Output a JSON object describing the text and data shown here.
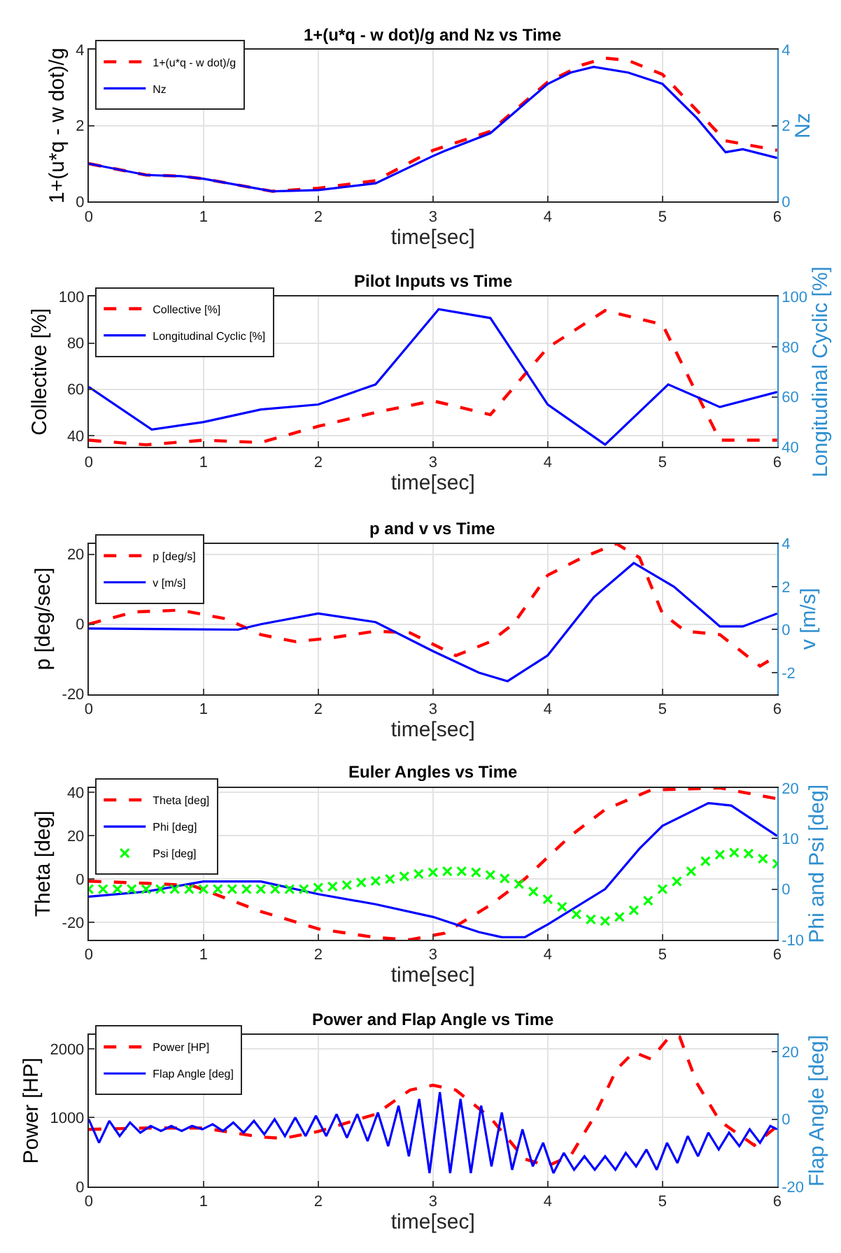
{
  "chart_data": [
    {
      "type": "line",
      "title": "1+(u*q - w dot)/g and Nz vs Time",
      "xlabel": "time[sec]",
      "ylabel": "1+(u*q - w dot)/g",
      "y2label": "Nz",
      "xlim": [
        0,
        6
      ],
      "xticks": [
        0,
        1,
        2,
        3,
        4,
        5,
        6
      ],
      "ylim": [
        0,
        4
      ],
      "yticks": [
        0,
        2,
        4
      ],
      "y2lim": [
        0,
        4
      ],
      "y2ticks": [
        0,
        2,
        4
      ],
      "grid": true,
      "legend": "top left",
      "series": [
        {
          "name": "1+(u*q - w dot)/g",
          "color": "#ff0000",
          "line_style": "dashed",
          "x": [
            0,
            0.5,
            0.8,
            1,
            1.6,
            2,
            2.5,
            3,
            3.5,
            4,
            4.3,
            4.5,
            4.7,
            5,
            5.3,
            5.55,
            6
          ],
          "values": [
            1.0,
            0.7,
            0.67,
            0.6,
            0.27,
            0.35,
            0.55,
            1.35,
            1.85,
            3.15,
            3.6,
            3.78,
            3.72,
            3.35,
            2.4,
            1.6,
            1.35
          ]
        },
        {
          "name": "Nz",
          "color": "#0000ff",
          "line_style": "solid",
          "axis": "y2",
          "x": [
            0,
            0.5,
            0.8,
            1,
            1.6,
            2,
            2.5,
            3,
            3.1,
            3.5,
            4,
            4.2,
            4.4,
            4.7,
            5,
            5.3,
            5.55,
            5.7,
            6
          ],
          "values": [
            1.0,
            0.7,
            0.67,
            0.6,
            0.27,
            0.3,
            0.48,
            1.2,
            1.33,
            1.8,
            3.1,
            3.4,
            3.55,
            3.4,
            3.1,
            2.2,
            1.3,
            1.38,
            1.15
          ]
        }
      ]
    },
    {
      "type": "line",
      "title": "Pilot Inputs vs Time",
      "xlabel": "time[sec]",
      "ylabel": "Collective [%]",
      "y2label": "Longitudinal Cyclic [%]",
      "xlim": [
        0,
        6
      ],
      "xticks": [
        0,
        1,
        2,
        3,
        4,
        5,
        6
      ],
      "ylim": [
        35,
        100
      ],
      "yticks": [
        40,
        60,
        80,
        100
      ],
      "y2lim": [
        40,
        100
      ],
      "y2ticks": [
        40,
        60,
        80,
        100
      ],
      "grid": true,
      "legend": "top left",
      "series": [
        {
          "name": "Collective [%]",
          "color": "#ff0000",
          "line_style": "dashed",
          "x": [
            0,
            0.5,
            1,
            1.5,
            2,
            2.5,
            3,
            3.5,
            4,
            4.5,
            5,
            5.5,
            6
          ],
          "values": [
            38,
            36,
            38,
            37,
            44,
            50,
            55,
            49,
            78,
            94,
            88,
            38,
            38
          ]
        },
        {
          "name": "Longitudinal Cyclic [%]",
          "color": "#0000ff",
          "line_style": "solid",
          "axis": "y2",
          "x": [
            0,
            0.55,
            1,
            1.5,
            2,
            2.5,
            3.05,
            3.5,
            4,
            4.5,
            5.05,
            5.5,
            6
          ],
          "values": [
            64,
            47,
            50,
            55,
            57,
            65,
            95,
            91.5,
            57,
            41,
            65,
            56,
            62
          ]
        }
      ]
    },
    {
      "type": "line",
      "title": "p and v vs Time",
      "xlabel": "time[sec]",
      "ylabel": "p [deg/sec]",
      "y2label": "v [m/s]",
      "xlim": [
        0,
        6
      ],
      "xticks": [
        0,
        1,
        2,
        3,
        4,
        5,
        6
      ],
      "ylim": [
        -20,
        23
      ],
      "yticks": [
        -20,
        0,
        20
      ],
      "y2lim": [
        -3,
        4
      ],
      "y2ticks": [
        -2,
        0,
        2,
        4
      ],
      "grid": true,
      "legend": "top left",
      "series": [
        {
          "name": "p [deg/s]",
          "color": "#ff0000",
          "line_style": "dashed",
          "x": [
            0,
            0.4,
            0.8,
            1.2,
            1.5,
            1.8,
            2.1,
            2.5,
            2.8,
            3.2,
            3.5,
            3.7,
            4,
            4.3,
            4.6,
            4.8,
            5,
            5.2,
            5.5,
            5.85,
            6
          ],
          "values": [
            0,
            3.5,
            4,
            1.5,
            -3,
            -5,
            -4,
            -2,
            -2.5,
            -9,
            -5,
            0,
            14,
            19,
            23,
            19,
            3,
            -2,
            -3,
            -12,
            -9
          ]
        },
        {
          "name": "v [m/s]",
          "color": "#0000ff",
          "line_style": "solid",
          "axis": "y2",
          "x": [
            0,
            1.3,
            1.5,
            2,
            2.5,
            3,
            3.4,
            3.65,
            4,
            4.4,
            4.75,
            5.1,
            5.5,
            5.7,
            6
          ],
          "values": [
            0.05,
            0,
            0.25,
            0.75,
            0.35,
            -1.0,
            -2.0,
            -2.4,
            -1.2,
            1.5,
            3.1,
            2,
            0.15,
            0.15,
            0.75
          ]
        }
      ]
    },
    {
      "type": "line",
      "title": "Euler Angles vs Time",
      "xlabel": "time[sec]",
      "ylabel": "Theta [deg]",
      "y2label": "Phi and Psi [deg]",
      "xlim": [
        0,
        6
      ],
      "xticks": [
        0,
        1,
        2,
        3,
        4,
        5,
        6
      ],
      "ylim": [
        -28,
        42
      ],
      "yticks": [
        -20,
        0,
        20,
        40
      ],
      "y2lim": [
        -10,
        20
      ],
      "y2ticks": [
        -10,
        0,
        10,
        20
      ],
      "grid": true,
      "legend": "top left",
      "series": [
        {
          "name": "Theta [deg]",
          "color": "#ff0000",
          "line_style": "dashed",
          "x": [
            0,
            0.5,
            0.9,
            1.5,
            2,
            2.5,
            2.8,
            3.1,
            3.5,
            3.8,
            4.2,
            4.5,
            4.9,
            5.5,
            6
          ],
          "values": [
            -1,
            -2,
            -3,
            -15,
            -23,
            -27,
            -28,
            -25,
            -12,
            0,
            20,
            32,
            41,
            42,
            37
          ]
        },
        {
          "name": "Phi [deg]",
          "color": "#0000ff",
          "line_style": "solid",
          "axis": "y2",
          "x": [
            0,
            0.5,
            1,
            1.5,
            2,
            2.5,
            3,
            3.4,
            3.6,
            3.8,
            4,
            4.5,
            4.8,
            5,
            5.4,
            5.6,
            6
          ],
          "values": [
            -1.5,
            -0.5,
            1.5,
            1.5,
            -1,
            -3,
            -5.5,
            -8.5,
            -9.5,
            -9.5,
            -7,
            0,
            8,
            12.5,
            17,
            16.5,
            10.5
          ]
        },
        {
          "name": "Psi [deg]",
          "type": "scatter",
          "marker": "cross",
          "color": "#00ff00",
          "axis": "y2",
          "x": [
            0,
            0.125,
            0.25,
            0.375,
            0.5,
            0.625,
            0.75,
            0.875,
            1,
            1.125,
            1.25,
            1.375,
            1.5,
            1.625,
            1.75,
            1.875,
            2,
            2.125,
            2.25,
            2.375,
            2.5,
            2.625,
            2.75,
            2.875,
            3,
            3.125,
            3.25,
            3.375,
            3.5,
            3.625,
            3.75,
            3.875,
            4,
            4.125,
            4.25,
            4.375,
            4.5,
            4.625,
            4.75,
            4.875,
            5,
            5.125,
            5.25,
            5.375,
            5.5,
            5.625,
            5.75,
            5.875,
            6
          ],
          "values": [
            0,
            0,
            0,
            0,
            0,
            0,
            0,
            0,
            0,
            0,
            0,
            0,
            0,
            0,
            0,
            0,
            0.3,
            0.5,
            0.8,
            1.3,
            1.6,
            2,
            2.5,
            3,
            3.3,
            3.5,
            3.5,
            3.3,
            2.8,
            2.1,
            1,
            -0.5,
            -2,
            -3.5,
            -5,
            -6,
            -6.3,
            -5.5,
            -4.2,
            -2.3,
            0,
            1.5,
            3.5,
            5.5,
            6.8,
            7.2,
            7,
            6,
            5
          ]
        }
      ]
    },
    {
      "type": "line",
      "title": "Power and Flap Angle vs Time",
      "xlabel": "time[sec]",
      "ylabel": "Power [HP]",
      "y2label": "Flap Angle [deg]",
      "xlim": [
        0,
        6
      ],
      "xticks": [
        0,
        1,
        2,
        3,
        4,
        5,
        6
      ],
      "ylim": [
        0,
        2200
      ],
      "yticks": [
        0,
        1000,
        2000
      ],
      "y2lim": [
        -20,
        25
      ],
      "y2ticks": [
        -20,
        0,
        20
      ],
      "grid": true,
      "legend": "top left",
      "series": [
        {
          "name": "Power [HP]",
          "color": "#ff0000",
          "line_style": "dashed",
          "x": [
            0,
            0.5,
            1,
            1.5,
            1.7,
            2,
            2.5,
            2.8,
            3,
            3.2,
            3.5,
            3.8,
            4,
            4.2,
            4.4,
            4.6,
            4.75,
            4.9,
            5.05,
            5.15,
            5.3,
            5.5,
            5.8,
            6
          ],
          "values": [
            830,
            850,
            850,
            720,
            700,
            800,
            1050,
            1400,
            1470,
            1400,
            1000,
            400,
            300,
            450,
            1000,
            1700,
            1950,
            1850,
            2150,
            2170,
            1500,
            950,
            600,
            880
          ]
        },
        {
          "name": "Flap Angle [deg]",
          "color": "#0000ff",
          "line_style": "solid",
          "axis": "y2",
          "x": [
            0,
            0.09,
            0.18,
            0.27,
            0.36,
            0.45,
            0.54,
            0.63,
            0.72,
            0.81,
            0.9,
            0.99,
            1.08,
            1.17,
            1.26,
            1.35,
            1.44,
            1.53,
            1.62,
            1.71,
            1.8,
            1.89,
            1.98,
            2.07,
            2.16,
            2.25,
            2.34,
            2.43,
            2.52,
            2.61,
            2.7,
            2.79,
            2.88,
            2.97,
            3.06,
            3.15,
            3.24,
            3.33,
            3.42,
            3.51,
            3.6,
            3.69,
            3.78,
            3.87,
            3.96,
            4.05,
            4.14,
            4.23,
            4.32,
            4.41,
            4.5,
            4.59,
            4.68,
            4.77,
            4.86,
            4.95,
            5.04,
            5.13,
            5.22,
            5.31,
            5.4,
            5.49,
            5.58,
            5.67,
            5.76,
            5.85,
            5.94,
            6
          ],
          "values": [
            0,
            -7,
            -0.5,
            -5,
            -1,
            -4,
            -2,
            -3.5,
            -2,
            -3.5,
            -2,
            -3,
            -1.5,
            -3.5,
            -1,
            -4,
            -0.5,
            -4.5,
            0,
            -5,
            0.5,
            -5,
            1,
            -5,
            1.5,
            -5.5,
            1.5,
            -6.5,
            2,
            -8,
            4,
            -11,
            6,
            -16,
            8,
            -16,
            6,
            -16,
            4,
            -14,
            2,
            -15,
            -3,
            -14,
            -7,
            -16,
            -10,
            -15,
            -11,
            -15,
            -11,
            -15,
            -10,
            -14,
            -9,
            -15,
            -7,
            -13,
            -5,
            -11,
            -4,
            -9,
            -4,
            -8,
            -3,
            -7,
            -2,
            -3
          ]
        }
      ]
    }
  ]
}
